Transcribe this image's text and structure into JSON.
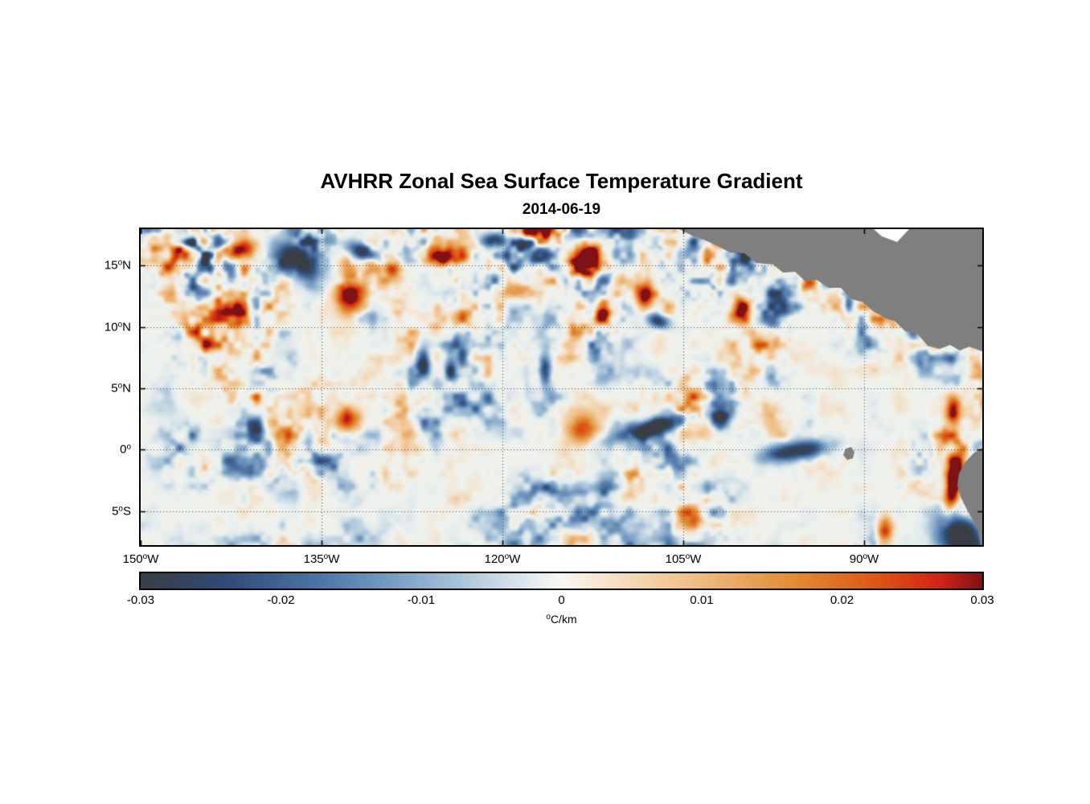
{
  "title": "AVHRR Zonal Sea Surface Temperature Gradient",
  "subtitle": "2014-06-19",
  "degree_symbol": "o",
  "chart_data": {
    "type": "heatmap",
    "title": "AVHRR Zonal Sea Surface Temperature Gradient",
    "date": "2014-06-19",
    "xlim": [
      -150,
      -80.2
    ],
    "ylim": [
      -7.75,
      17.95
    ],
    "grid": "dotted",
    "value_range": [
      -0.03,
      0.03
    ],
    "x_ticks": [
      {
        "lon": -150,
        "num": "150",
        "hemi": "W"
      },
      {
        "lon": -135,
        "num": "135",
        "hemi": "W"
      },
      {
        "lon": -120,
        "num": "120",
        "hemi": "W"
      },
      {
        "lon": -105,
        "num": "105",
        "hemi": "W"
      },
      {
        "lon": -90,
        "num": "90",
        "hemi": "W"
      }
    ],
    "y_ticks": [
      {
        "lat": 15,
        "num": "15",
        "hemi": "N"
      },
      {
        "lat": 10,
        "num": "10",
        "hemi": "N"
      },
      {
        "lat": 5,
        "num": "5",
        "hemi": "N"
      },
      {
        "lat": 0,
        "num": "0",
        "hemi": ""
      },
      {
        "lat": -5,
        "num": "5",
        "hemi": "S"
      }
    ],
    "colorbar": {
      "min": -0.03,
      "max": 0.03,
      "unit": "C/km",
      "ticks": [
        {
          "value": -0.03,
          "label": "-0.03"
        },
        {
          "value": -0.02,
          "label": "-0.02"
        },
        {
          "value": -0.01,
          "label": "-0.01"
        },
        {
          "value": 0,
          "label": "0"
        },
        {
          "value": 0.01,
          "label": "0.01"
        },
        {
          "value": 0.02,
          "label": "0.02"
        },
        {
          "value": 0.03,
          "label": "0.03"
        }
      ],
      "stops": [
        {
          "pos": 0.0,
          "color": "#3a3e44"
        },
        {
          "pos": 0.1,
          "color": "#2f4a74"
        },
        {
          "pos": 0.22,
          "color": "#4f77a8"
        },
        {
          "pos": 0.34,
          "color": "#8fb1cf"
        },
        {
          "pos": 0.45,
          "color": "#d9e5ec"
        },
        {
          "pos": 0.5,
          "color": "#f9f7f3"
        },
        {
          "pos": 0.55,
          "color": "#f6e4cd"
        },
        {
          "pos": 0.66,
          "color": "#efbd85"
        },
        {
          "pos": 0.78,
          "color": "#e08b31"
        },
        {
          "pos": 0.88,
          "color": "#dd5214"
        },
        {
          "pos": 0.95,
          "color": "#cf2317"
        },
        {
          "pos": 1.0,
          "color": "#7e1215"
        }
      ]
    },
    "ocean_tint": "#e6ede8",
    "land": {
      "color": "#7f7f7f",
      "polygons": [
        [
          [
            670,
            0
          ],
          [
            686,
            8
          ],
          [
            700,
            13
          ],
          [
            716,
            20
          ],
          [
            733,
            29
          ],
          [
            751,
            30
          ],
          [
            766,
            42
          ],
          [
            787,
            44
          ],
          [
            799,
            54
          ],
          [
            814,
            53
          ],
          [
            827,
            65
          ],
          [
            841,
            63
          ],
          [
            856,
            73
          ],
          [
            871,
            73
          ],
          [
            884,
            87
          ],
          [
            899,
            91
          ],
          [
            911,
            102
          ],
          [
            927,
            111
          ],
          [
            939,
            115
          ],
          [
            951,
            127
          ],
          [
            967,
            131
          ],
          [
            979,
            145
          ],
          [
            994,
            149
          ],
          [
            1007,
            144
          ],
          [
            1019,
            151
          ],
          [
            1031,
            146
          ],
          [
            1047,
            152
          ],
          [
            1047,
            0
          ]
        ],
        [
          [
            1047,
            272
          ],
          [
            1036,
            279
          ],
          [
            1025,
            291
          ],
          [
            1018,
            304
          ],
          [
            1016,
            318
          ],
          [
            1020,
            333
          ],
          [
            1028,
            349
          ],
          [
            1036,
            363
          ],
          [
            1042,
            376
          ],
          [
            1045,
            393
          ],
          [
            1047,
            393
          ]
        ],
        [
          [
            877,
            273
          ],
          [
            884,
            271
          ],
          [
            888,
            277
          ],
          [
            886,
            285
          ],
          [
            879,
            287
          ],
          [
            874,
            281
          ]
        ]
      ],
      "holes": [
        [
          [
            912,
            0
          ],
          [
            956,
            0
          ],
          [
            941,
            16
          ],
          [
            922,
            9
          ]
        ]
      ]
    },
    "features": [
      {
        "x": 0.114,
        "y": 0.068,
        "sx": 0.016,
        "sy": 0.008,
        "angle": -15,
        "amp": 1.15
      },
      {
        "x": 0.186,
        "y": 0.1,
        "sx": 0.013,
        "sy": 0.022,
        "angle": -60,
        "amp": -1.15
      },
      {
        "x": 0.09,
        "y": 0.04,
        "sx": 0.012,
        "sy": 0.006,
        "angle": 0,
        "amp": -0.9
      },
      {
        "x": 0.248,
        "y": 0.2,
        "sx": 0.013,
        "sy": 0.017,
        "angle": 10,
        "amp": 1.3
      },
      {
        "x": 0.3,
        "y": 0.125,
        "sx": 0.008,
        "sy": 0.008,
        "angle": 0,
        "amp": 1.0
      },
      {
        "x": 0.265,
        "y": 0.072,
        "sx": 0.014,
        "sy": 0.007,
        "angle": 20,
        "amp": -1.05
      },
      {
        "x": 0.36,
        "y": 0.09,
        "sx": 0.01,
        "sy": 0.007,
        "angle": -20,
        "amp": 1.0
      },
      {
        "x": 0.42,
        "y": 0.035,
        "sx": 0.012,
        "sy": 0.006,
        "angle": 0,
        "amp": -0.9
      },
      {
        "x": 0.535,
        "y": 0.09,
        "sx": 0.008,
        "sy": 0.012,
        "angle": 30,
        "amp": 1.0
      },
      {
        "x": 0.6,
        "y": 0.21,
        "sx": 0.007,
        "sy": 0.01,
        "angle": 0,
        "amp": 0.95
      },
      {
        "x": 0.615,
        "y": 0.29,
        "sx": 0.01,
        "sy": 0.006,
        "angle": 20,
        "amp": -0.9
      },
      {
        "x": 0.712,
        "y": 0.25,
        "sx": 0.006,
        "sy": 0.01,
        "angle": 0,
        "amp": 1.0
      },
      {
        "x": 0.335,
        "y": 0.43,
        "sx": 0.006,
        "sy": 0.012,
        "angle": 0,
        "amp": -0.85
      },
      {
        "x": 0.368,
        "y": 0.445,
        "sx": 0.005,
        "sy": 0.01,
        "angle": 0,
        "amp": -0.8
      },
      {
        "x": 0.48,
        "y": 0.445,
        "sx": 0.005,
        "sy": 0.013,
        "angle": 0,
        "amp": -0.9
      },
      {
        "x": 0.245,
        "y": 0.6,
        "sx": 0.01,
        "sy": 0.01,
        "angle": 0,
        "amp": 0.9
      },
      {
        "x": 0.525,
        "y": 0.63,
        "sx": 0.014,
        "sy": 0.013,
        "angle": 0,
        "amp": 0.85
      },
      {
        "x": 0.61,
        "y": 0.625,
        "sx": 0.035,
        "sy": 0.007,
        "angle": -15,
        "amp": -1.15
      },
      {
        "x": 0.69,
        "y": 0.6,
        "sx": 0.008,
        "sy": 0.008,
        "angle": 0,
        "amp": -0.8
      },
      {
        "x": 0.78,
        "y": 0.7,
        "sx": 0.028,
        "sy": 0.008,
        "angle": -8,
        "amp": -1.0
      },
      {
        "x": 0.966,
        "y": 0.8,
        "sx": 0.006,
        "sy": 0.022,
        "angle": 10,
        "amp": 1.8
      },
      {
        "x": 0.975,
        "y": 0.98,
        "sx": 0.016,
        "sy": 0.026,
        "angle": -35,
        "amp": -1.3
      },
      {
        "x": 0.884,
        "y": 0.955,
        "sx": 0.007,
        "sy": 0.012,
        "angle": 0,
        "amp": 1.0
      },
      {
        "x": 0.965,
        "y": 0.575,
        "sx": 0.006,
        "sy": 0.012,
        "angle": 0,
        "amp": 1.0
      }
    ]
  }
}
